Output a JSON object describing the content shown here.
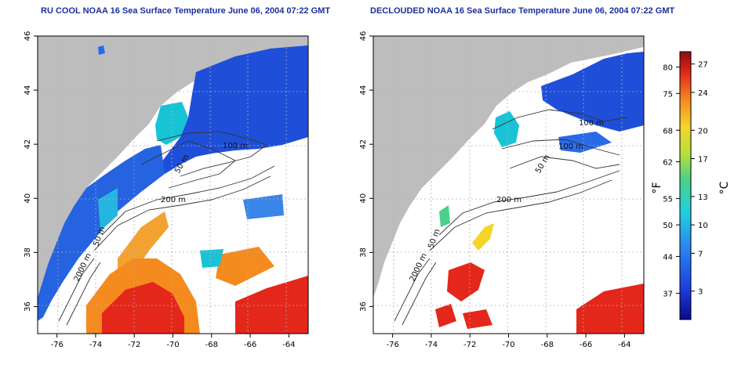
{
  "panels": [
    {
      "title": "RU COOL NOAA 16 Sea Surface Temperature June 06, 2004 07:22 GMT",
      "contour_labels": [
        "100 m",
        "50 m",
        "200 m",
        "50 m",
        "2000 m"
      ]
    },
    {
      "title": "DECLOUDED NOAA 16 Sea Surface Temperature June 06, 2004 07:22 GMT",
      "contour_labels": [
        "100 m",
        "100 m",
        "50 m",
        "200 m",
        "50 m",
        "2000 m"
      ]
    }
  ],
  "axes": {
    "x_ticks": [
      "-76",
      "-74",
      "-72",
      "-70",
      "-68",
      "-66",
      "-64"
    ],
    "y_ticks": [
      "36",
      "38",
      "40",
      "42",
      "44",
      "46"
    ]
  },
  "colorbar": {
    "f_label": "°F",
    "c_label": "°C",
    "f_ticks": [
      "80",
      "75",
      "68",
      "62",
      "55",
      "50",
      "44",
      "37"
    ],
    "c_ticks": [
      "27",
      "24",
      "20",
      "17",
      "13",
      "10",
      "7",
      "3"
    ]
  },
  "colors": {
    "title": "#1b2f9e",
    "land": "#bdbdbd",
    "cold": "#1f4fd8",
    "cool": "#19c3d6",
    "warm": "#f6b52a",
    "hot": "#e4271b"
  }
}
